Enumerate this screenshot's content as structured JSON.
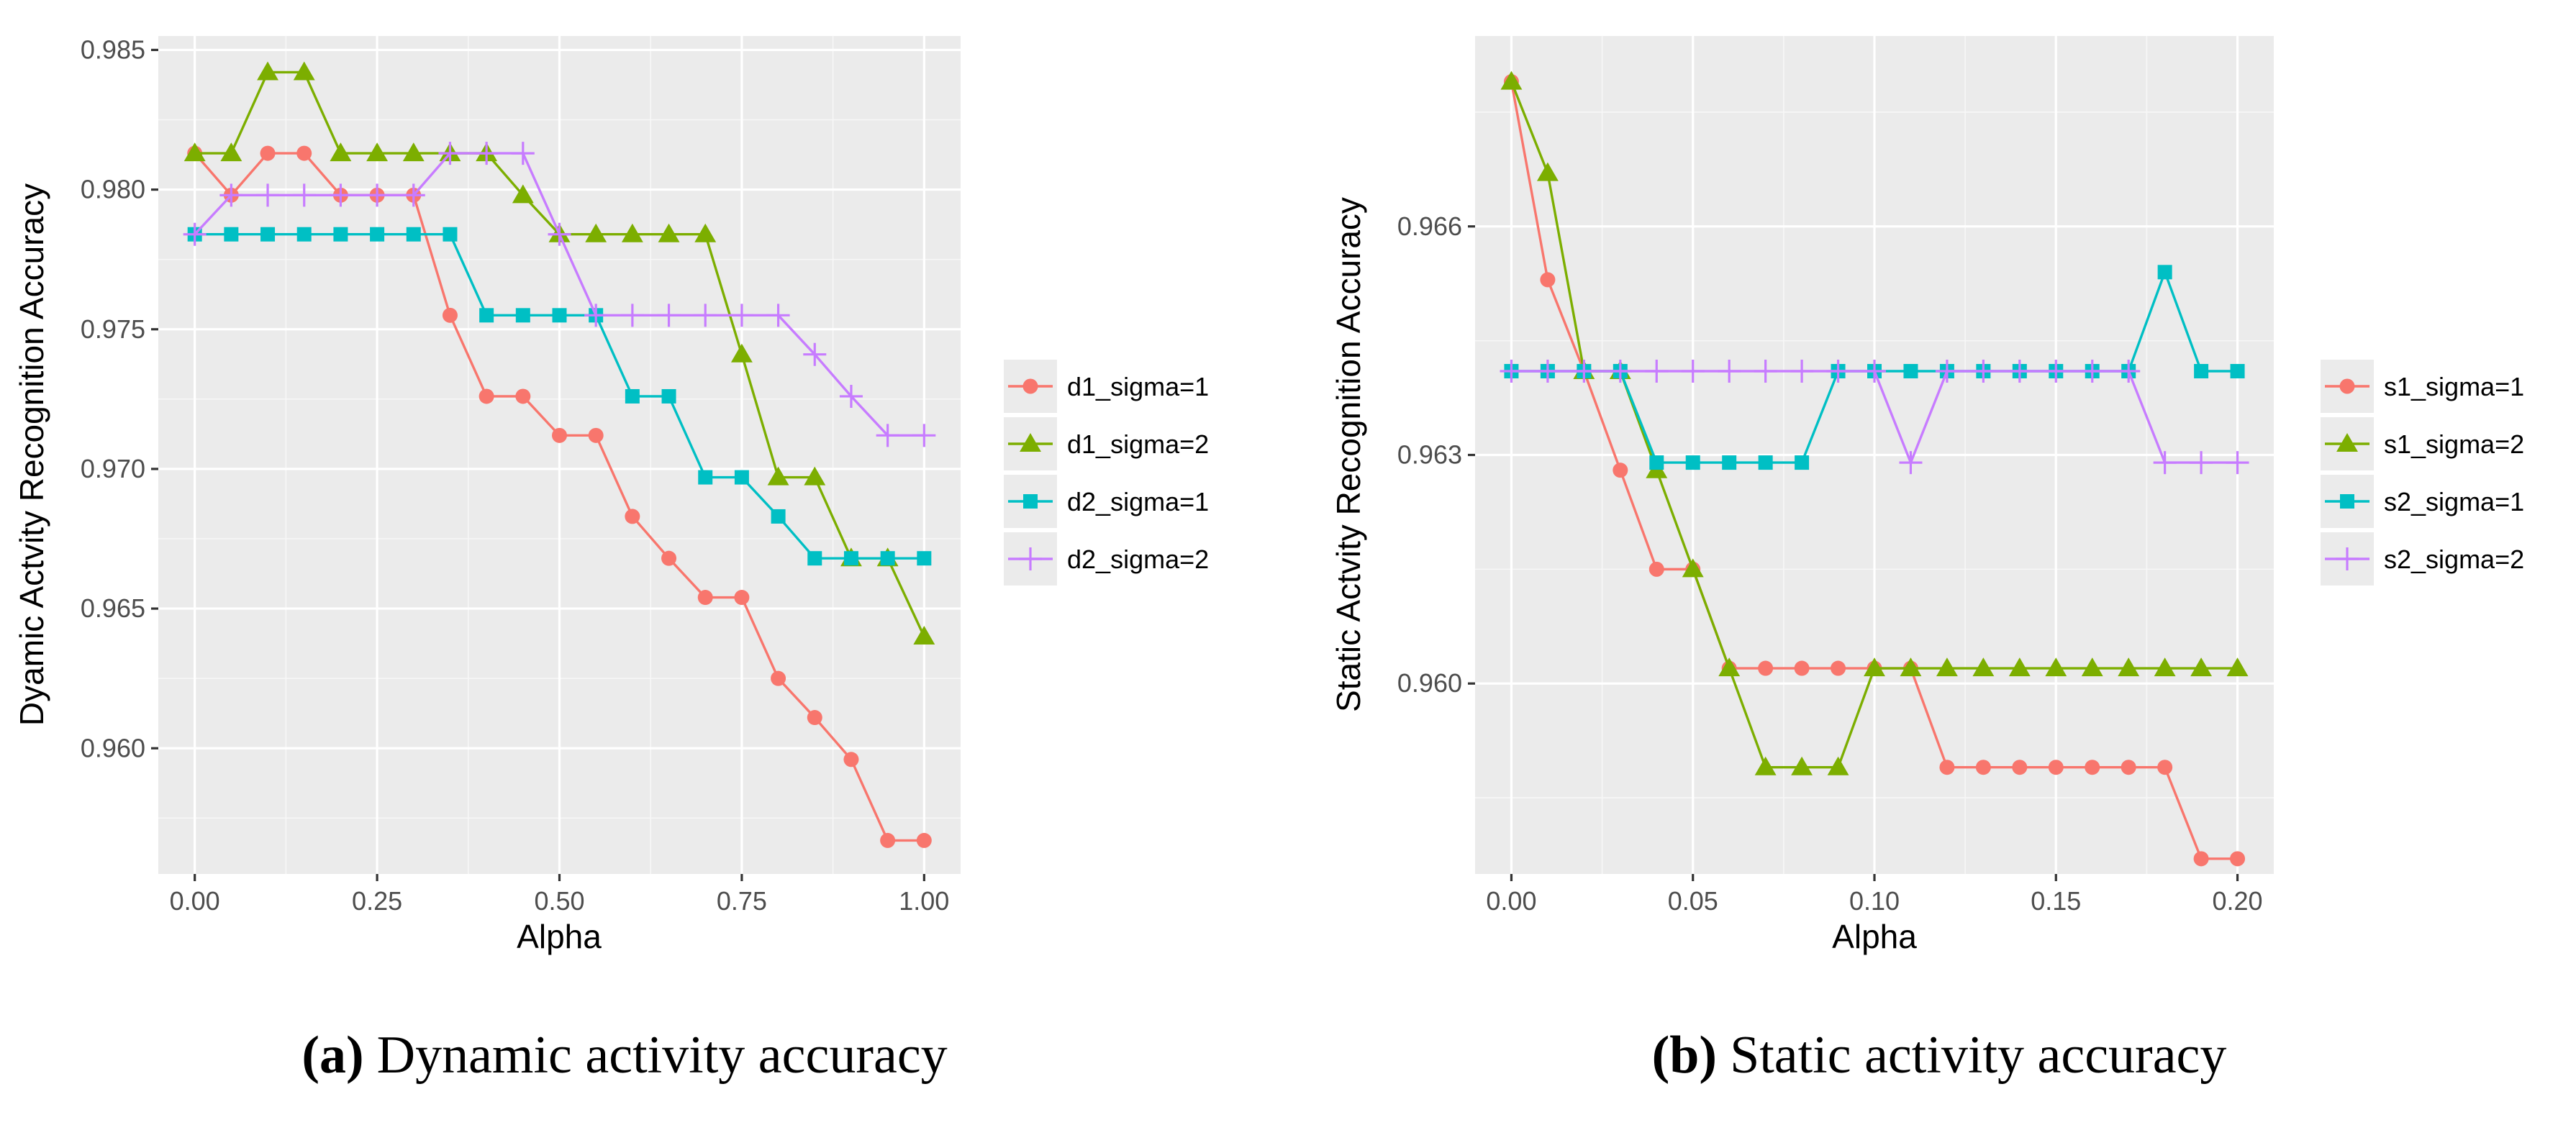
{
  "colors": {
    "d1_sigma1": "#f8766d",
    "d1_sigma2": "#7cae00",
    "d2_sigma1": "#00bfc4",
    "d2_sigma2": "#c77cff"
  },
  "chart_data": [
    {
      "type": "line",
      "id": "a",
      "xlabel": "Alpha",
      "ylabel": "Dyamic Actvity Recognition Accuracy",
      "xlim": [
        -0.05,
        1.05
      ],
      "ylim": [
        0.9555,
        0.9855
      ],
      "xticks": [
        0,
        0.25,
        0.5,
        0.75,
        1.0
      ],
      "xtick_labels": [
        "0.00",
        "0.25",
        "0.50",
        "0.75",
        "1.00"
      ],
      "yticks": [
        0.96,
        0.965,
        0.97,
        0.975,
        0.98,
        0.985
      ],
      "ytick_labels": [
        "0.960",
        "0.965",
        "0.970",
        "0.975",
        "0.980",
        "0.985"
      ],
      "x": [
        0,
        0.05,
        0.1,
        0.15,
        0.2,
        0.25,
        0.3,
        0.35,
        0.4,
        0.45,
        0.5,
        0.55,
        0.6,
        0.65,
        0.7,
        0.75,
        0.8,
        0.85,
        0.9,
        0.95,
        1.0
      ],
      "series": [
        {
          "name": "d1_sigma=1",
          "marker": "circle",
          "color": "#f8766d",
          "values": [
            0.9813,
            0.9798,
            0.9813,
            0.9813,
            0.9798,
            0.9798,
            0.9798,
            0.9755,
            0.9726,
            0.9726,
            0.9712,
            0.9712,
            0.9683,
            0.9668,
            0.9654,
            0.9654,
            0.9625,
            0.9611,
            0.9596,
            0.9567,
            0.9567
          ]
        },
        {
          "name": "d1_sigma=2",
          "marker": "triangle",
          "color": "#7cae00",
          "values": [
            0.9813,
            0.9813,
            0.9842,
            0.9842,
            0.9813,
            0.9813,
            0.9813,
            0.9813,
            0.9813,
            0.9798,
            0.9784,
            0.9784,
            0.9784,
            0.9784,
            0.9784,
            0.9741,
            0.9697,
            0.9697,
            0.9668,
            0.9668,
            0.964
          ]
        },
        {
          "name": "d2_sigma=1",
          "marker": "square",
          "color": "#00bfc4",
          "values": [
            0.9784,
            0.9784,
            0.9784,
            0.9784,
            0.9784,
            0.9784,
            0.9784,
            0.9784,
            0.9755,
            0.9755,
            0.9755,
            0.9755,
            0.9726,
            0.9726,
            0.9697,
            0.9697,
            0.9683,
            0.9668,
            0.9668,
            0.9668,
            0.9668
          ]
        },
        {
          "name": "d2_sigma=2",
          "marker": "plus",
          "color": "#c77cff",
          "values": [
            0.9784,
            0.9798,
            0.9798,
            0.9798,
            0.9798,
            0.9798,
            0.9798,
            0.9813,
            0.9813,
            0.9813,
            0.9784,
            0.9755,
            0.9755,
            0.9755,
            0.9755,
            0.9755,
            0.9755,
            0.9741,
            0.9726,
            0.9712,
            0.9712
          ]
        }
      ],
      "caption_label": "(a)",
      "caption_text": "Dynamic activity accuracy"
    },
    {
      "type": "line",
      "id": "b",
      "xlabel": "Alpha",
      "ylabel": "Static Actvity Recognition Accuracy",
      "xlim": [
        -0.01,
        0.21
      ],
      "ylim": [
        0.9575,
        0.9685
      ],
      "xticks": [
        0,
        0.05,
        0.1,
        0.15,
        0.2
      ],
      "xtick_labels": [
        "0.00",
        "0.05",
        "0.10",
        "0.15",
        "0.20"
      ],
      "yticks": [
        0.96,
        0.963,
        0.966
      ],
      "ytick_labels": [
        "0.960",
        "0.963",
        "0.966"
      ],
      "x": [
        0,
        0.01,
        0.02,
        0.03,
        0.04,
        0.05,
        0.06,
        0.07,
        0.08,
        0.09,
        0.1,
        0.11,
        0.12,
        0.13,
        0.14,
        0.15,
        0.16,
        0.17,
        0.18,
        0.19,
        0.2
      ],
      "series": [
        {
          "name": "s1_sigma=1",
          "marker": "circle",
          "color": "#f8766d",
          "values": [
            0.9679,
            0.9653,
            0.9641,
            0.9628,
            0.9615,
            0.9615,
            0.9602,
            0.9602,
            0.9602,
            0.9602,
            0.9602,
            0.9602,
            0.9589,
            0.9589,
            0.9589,
            0.9589,
            0.9589,
            0.9589,
            0.9589,
            0.9577,
            0.9577
          ]
        },
        {
          "name": "s1_sigma=2",
          "marker": "triangle",
          "color": "#7cae00",
          "values": [
            0.9679,
            0.9667,
            0.9641,
            0.9641,
            0.9628,
            0.9615,
            0.9602,
            0.9589,
            0.9589,
            0.9589,
            0.9602,
            0.9602,
            0.9602,
            0.9602,
            0.9602,
            0.9602,
            0.9602,
            0.9602,
            0.9602,
            0.9602,
            0.9602
          ]
        },
        {
          "name": "s2_sigma=1",
          "marker": "square",
          "color": "#00bfc4",
          "values": [
            0.9641,
            0.9641,
            0.9641,
            0.9641,
            0.9629,
            0.9629,
            0.9629,
            0.9629,
            0.9629,
            0.9641,
            0.9641,
            0.9641,
            0.9641,
            0.9641,
            0.9641,
            0.9641,
            0.9641,
            0.9641,
            0.9654,
            0.9641,
            0.9641
          ]
        },
        {
          "name": "s2_sigma=2",
          "marker": "plus",
          "color": "#c77cff",
          "values": [
            0.9641,
            0.9641,
            0.9641,
            0.9641,
            0.9641,
            0.9641,
            0.9641,
            0.9641,
            0.9641,
            0.9641,
            0.9641,
            0.9629,
            0.9641,
            0.9641,
            0.9641,
            0.9641,
            0.9641,
            0.9641,
            0.9629,
            0.9629,
            0.9629
          ]
        }
      ],
      "caption_label": "(b)",
      "caption_text": "Static activity accuracy"
    }
  ]
}
